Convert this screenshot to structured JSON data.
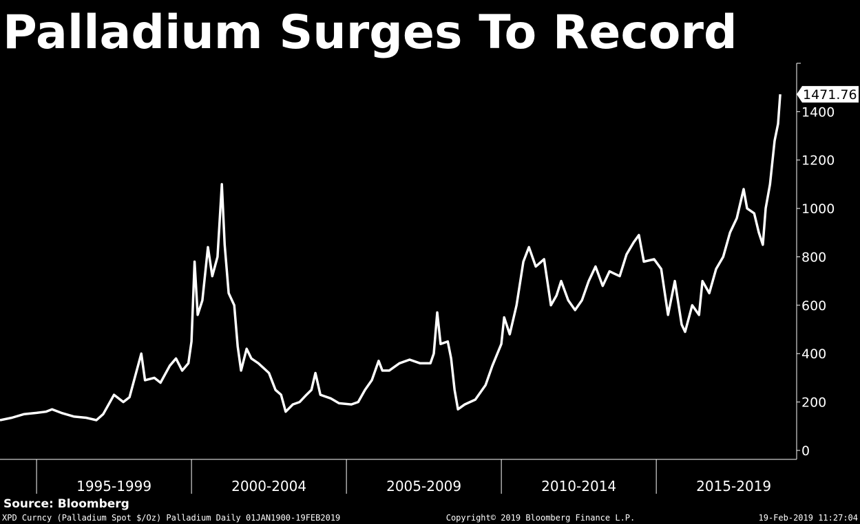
{
  "chart_data": {
    "type": "line",
    "title": "Palladium Surges To Record",
    "source": "Source: Bloomberg",
    "footer_left": "XPD Curncy (Palladium Spot  $/Oz) Palladium  Daily 01JAN1900-19FEB2019",
    "footer_center": "Copyright© 2019 Bloomberg Finance L.P.",
    "footer_right": "19-Feb-2019 11:27:04",
    "last_value_label": "1471.76",
    "periods": [
      "1995-1999",
      "2000-2004",
      "2005-2009",
      "2010-2014",
      "2015-2019"
    ],
    "xticks": [
      1995,
      2000,
      2005,
      2010,
      2015
    ],
    "xlim": [
      1993.82,
      2019.53
    ],
    "ylim": [
      -37,
      1600
    ],
    "yticks": [
      0,
      200,
      400,
      600,
      800,
      1000,
      1200,
      1400
    ],
    "color": "#ffffff",
    "x": [
      1993.82,
      1994.2,
      1994.6,
      1995.0,
      1995.3,
      1995.5,
      1995.8,
      1996.2,
      1996.6,
      1996.93,
      1997.15,
      1997.5,
      1997.8,
      1998.0,
      1998.38,
      1998.5,
      1998.8,
      1999.0,
      1999.3,
      1999.5,
      1999.7,
      1999.9,
      2000.0,
      2000.1,
      2000.2,
      2000.35,
      2000.53,
      2000.67,
      2000.84,
      2000.98,
      2001.07,
      2001.2,
      2001.38,
      2001.49,
      2001.6,
      2001.78,
      2001.93,
      2002.16,
      2002.5,
      2002.71,
      2002.89,
      2003.04,
      2003.27,
      2003.49,
      2003.71,
      2003.87,
      2004.0,
      2004.16,
      2004.49,
      2004.76,
      2005.16,
      2005.38,
      2005.6,
      2005.82,
      2006.04,
      2006.16,
      2006.38,
      2006.71,
      2007.04,
      2007.38,
      2007.71,
      2007.82,
      2007.93,
      2008.04,
      2008.27,
      2008.38,
      2008.49,
      2008.6,
      2008.82,
      2009.16,
      2009.49,
      2009.71,
      2010.0,
      2010.09,
      2010.27,
      2010.49,
      2010.71,
      2010.89,
      2011.11,
      2011.38,
      2011.6,
      2011.78,
      2011.93,
      2012.16,
      2012.38,
      2012.6,
      2012.82,
      2013.04,
      2013.27,
      2013.49,
      2013.82,
      2014.04,
      2014.27,
      2014.44,
      2014.6,
      2014.93,
      2015.16,
      2015.38,
      2015.6,
      2015.82,
      2015.93,
      2016.16,
      2016.38,
      2016.49,
      2016.71,
      2016.93,
      2017.16,
      2017.38,
      2017.6,
      2017.82,
      2017.93,
      2018.16,
      2018.31,
      2018.44,
      2018.53,
      2018.67,
      2018.82,
      2018.93,
      2019.0
    ],
    "values": [
      125,
      135,
      150,
      155,
      160,
      170,
      155,
      140,
      135,
      125,
      150,
      230,
      200,
      220,
      400,
      290,
      300,
      280,
      350,
      380,
      330,
      360,
      450,
      780,
      560,
      620,
      840,
      720,
      800,
      1100,
      850,
      650,
      600,
      430,
      330,
      420,
      380,
      360,
      320,
      250,
      230,
      160,
      190,
      200,
      230,
      250,
      320,
      230,
      215,
      195,
      190,
      200,
      250,
      290,
      370,
      330,
      330,
      360,
      375,
      360,
      360,
      400,
      570,
      440,
      450,
      380,
      250,
      170,
      190,
      210,
      270,
      350,
      440,
      550,
      480,
      600,
      780,
      840,
      760,
      790,
      600,
      640,
      700,
      620,
      580,
      620,
      700,
      760,
      680,
      740,
      720,
      810,
      860,
      890,
      780,
      790,
      750,
      560,
      700,
      520,
      490,
      600,
      560,
      700,
      650,
      750,
      800,
      900,
      960,
      1080,
      1000,
      980,
      900,
      850,
      1000,
      1100,
      1280,
      1350,
      1471.76
    ]
  }
}
